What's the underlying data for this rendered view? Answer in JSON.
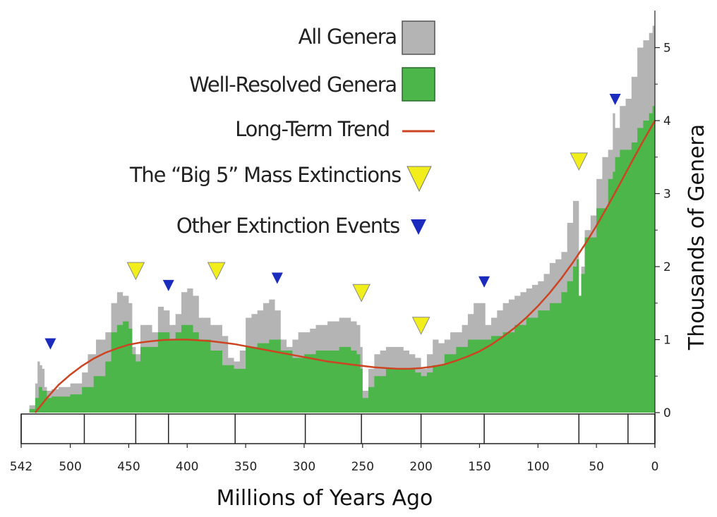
{
  "chart_data": {
    "type": "area",
    "title": "",
    "xlabel": "Millions of Years Ago",
    "ylabel": "Thousands of Genera",
    "xlim": [
      542,
      0
    ],
    "ylim": [
      0,
      5.5
    ],
    "grid": false,
    "legend_position": "top-center",
    "x_ticks": [
      "542",
      "500",
      "450",
      "400",
      "350",
      "300",
      "250",
      "200",
      "150",
      "100",
      "50",
      "0"
    ],
    "y_ticks": [
      "0",
      "1",
      "2",
      "3",
      "4",
      "5"
    ],
    "period_boundaries": [
      542,
      488,
      444,
      416,
      359,
      299,
      251,
      200,
      146,
      65,
      23,
      0
    ],
    "colors": {
      "all_genera": "#b4b4b4",
      "well_resolved": "#4db64b",
      "trend": "#cc4422",
      "big5": "#f2ee1c",
      "other": "#1a2bbd"
    },
    "legend": [
      {
        "label": "All Genera",
        "marker": "gray-box"
      },
      {
        "label": "Well-Resolved Genera",
        "marker": "green-box"
      },
      {
        "label": "Long-Term Trend",
        "marker": "red-line"
      },
      {
        "label": "The “Big 5” Mass Extinctions",
        "marker": "yellow-triangle"
      },
      {
        "label": "Other Extinction Events",
        "marker": "blue-triangle"
      }
    ],
    "series": [
      {
        "name": "All Genera",
        "x": [
          542,
          535,
          530,
          528,
          526,
          524,
          522,
          520,
          516,
          510,
          500,
          490,
          485,
          478,
          470,
          465,
          460,
          455,
          450,
          447,
          444,
          440,
          430,
          425,
          420,
          415,
          410,
          405,
          400,
          395,
          390,
          380,
          370,
          365,
          360,
          355,
          350,
          345,
          340,
          335,
          330,
          325,
          320,
          315,
          310,
          305,
          300,
          295,
          290,
          285,
          280,
          275,
          270,
          265,
          260,
          255,
          252,
          250,
          245,
          240,
          235,
          230,
          225,
          220,
          215,
          210,
          205,
          200,
          195,
          190,
          185,
          180,
          175,
          170,
          165,
          160,
          155,
          150,
          145,
          140,
          135,
          130,
          125,
          120,
          115,
          110,
          105,
          100,
          95,
          90,
          85,
          80,
          75,
          70,
          67,
          65,
          63,
          60,
          55,
          50,
          45,
          40,
          36,
          34,
          30,
          25,
          20,
          15,
          10,
          5,
          2,
          0
        ],
        "y": [
          0,
          0.1,
          0.4,
          0.7,
          0.65,
          0.6,
          0.35,
          0.3,
          0.32,
          0.35,
          0.4,
          0.55,
          0.8,
          1.0,
          1.1,
          1.5,
          1.65,
          1.6,
          1.5,
          0.9,
          0.8,
          1.2,
          1.1,
          1.45,
          1.4,
          1.2,
          1.35,
          1.65,
          1.7,
          1.6,
          1.3,
          1.2,
          1.05,
          0.75,
          0.7,
          0.85,
          1.3,
          1.35,
          1.4,
          1.5,
          1.55,
          1.4,
          1.0,
          0.9,
          1.0,
          1.1,
          1.1,
          1.15,
          1.2,
          1.2,
          1.25,
          1.25,
          1.3,
          1.3,
          1.25,
          1.2,
          0.9,
          0.3,
          0.6,
          0.8,
          0.85,
          0.9,
          0.9,
          0.9,
          0.85,
          0.8,
          0.75,
          0.6,
          0.8,
          1.0,
          0.95,
          1.0,
          1.1,
          1.1,
          1.2,
          1.35,
          1.5,
          1.5,
          1.2,
          1.3,
          1.4,
          1.5,
          1.55,
          1.6,
          1.65,
          1.7,
          1.75,
          1.8,
          1.9,
          2.05,
          2.1,
          2.2,
          2.6,
          2.9,
          2.9,
          1.5,
          2.0,
          2.5,
          2.7,
          3.2,
          3.5,
          3.6,
          4.1,
          3.9,
          4.2,
          4.3,
          4.6,
          5.0,
          5.1,
          5.2,
          5.3,
          5.4
        ]
      },
      {
        "name": "Well-Resolved Genera",
        "x": [
          542,
          535,
          530,
          527,
          524,
          520,
          516,
          510,
          500,
          490,
          480,
          470,
          465,
          460,
          455,
          450,
          447,
          444,
          440,
          430,
          425,
          420,
          415,
          410,
          405,
          400,
          395,
          390,
          380,
          370,
          360,
          350,
          340,
          330,
          320,
          310,
          300,
          290,
          280,
          270,
          260,
          255,
          252,
          250,
          245,
          240,
          230,
          220,
          210,
          205,
          200,
          195,
          190,
          180,
          170,
          160,
          150,
          145,
          140,
          130,
          120,
          110,
          100,
          90,
          80,
          75,
          70,
          67,
          65,
          63,
          60,
          50,
          40,
          36,
          34,
          30,
          20,
          15,
          10,
          5,
          2,
          0
        ],
        "y": [
          0,
          0.05,
          0.2,
          0.35,
          0.3,
          0.2,
          0.22,
          0.22,
          0.25,
          0.35,
          0.5,
          0.7,
          1.1,
          1.2,
          1.25,
          1.15,
          0.8,
          0.7,
          0.9,
          0.9,
          1.1,
          1.1,
          1.0,
          1.1,
          1.2,
          1.2,
          1.1,
          1.0,
          0.85,
          0.65,
          0.6,
          0.9,
          0.95,
          1.0,
          0.85,
          0.75,
          0.8,
          0.85,
          0.85,
          0.9,
          0.85,
          0.8,
          0.6,
          0.2,
          0.35,
          0.5,
          0.6,
          0.6,
          0.6,
          0.55,
          0.5,
          0.55,
          0.65,
          0.8,
          0.9,
          1.0,
          1.0,
          1.0,
          1.05,
          1.1,
          1.2,
          1.3,
          1.4,
          1.5,
          1.65,
          1.8,
          2.0,
          2.1,
          1.6,
          1.9,
          2.4,
          2.8,
          3.2,
          3.3,
          3.5,
          3.6,
          3.7,
          3.9,
          4.0,
          4.1,
          4.2,
          4.2
        ]
      },
      {
        "name": "Long-Term Trend",
        "x": [
          530,
          520,
          510,
          500,
          490,
          480,
          470,
          460,
          450,
          440,
          430,
          420,
          410,
          400,
          390,
          380,
          370,
          360,
          350,
          340,
          330,
          320,
          310,
          300,
          290,
          280,
          270,
          260,
          250,
          240,
          230,
          220,
          210,
          200,
          190,
          180,
          170,
          160,
          150,
          140,
          130,
          120,
          110,
          100,
          90,
          80,
          70,
          60,
          50,
          40,
          30,
          20,
          10,
          0
        ],
        "y": [
          0,
          0.2,
          0.38,
          0.52,
          0.64,
          0.74,
          0.82,
          0.88,
          0.93,
          0.96,
          0.98,
          0.995,
          1.0,
          1.0,
          0.99,
          0.98,
          0.96,
          0.94,
          0.91,
          0.88,
          0.85,
          0.82,
          0.79,
          0.76,
          0.73,
          0.7,
          0.68,
          0.66,
          0.64,
          0.62,
          0.61,
          0.6,
          0.6,
          0.61,
          0.63,
          0.66,
          0.71,
          0.77,
          0.84,
          0.93,
          1.04,
          1.16,
          1.3,
          1.46,
          1.64,
          1.84,
          2.06,
          2.3,
          2.56,
          2.84,
          3.13,
          3.43,
          3.72,
          4.0
        ]
      }
    ],
    "big5_extinctions": [
      {
        "x": 444,
        "y": 1.95
      },
      {
        "x": 375,
        "y": 1.95
      },
      {
        "x": 251,
        "y": 1.65
      },
      {
        "x": 200,
        "y": 1.2
      },
      {
        "x": 65,
        "y": 3.45
      }
    ],
    "other_extinctions": [
      {
        "x": 517,
        "y": 0.95
      },
      {
        "x": 416,
        "y": 1.75
      },
      {
        "x": 323,
        "y": 1.85
      },
      {
        "x": 146,
        "y": 1.8
      },
      {
        "x": 34,
        "y": 4.3
      }
    ]
  }
}
